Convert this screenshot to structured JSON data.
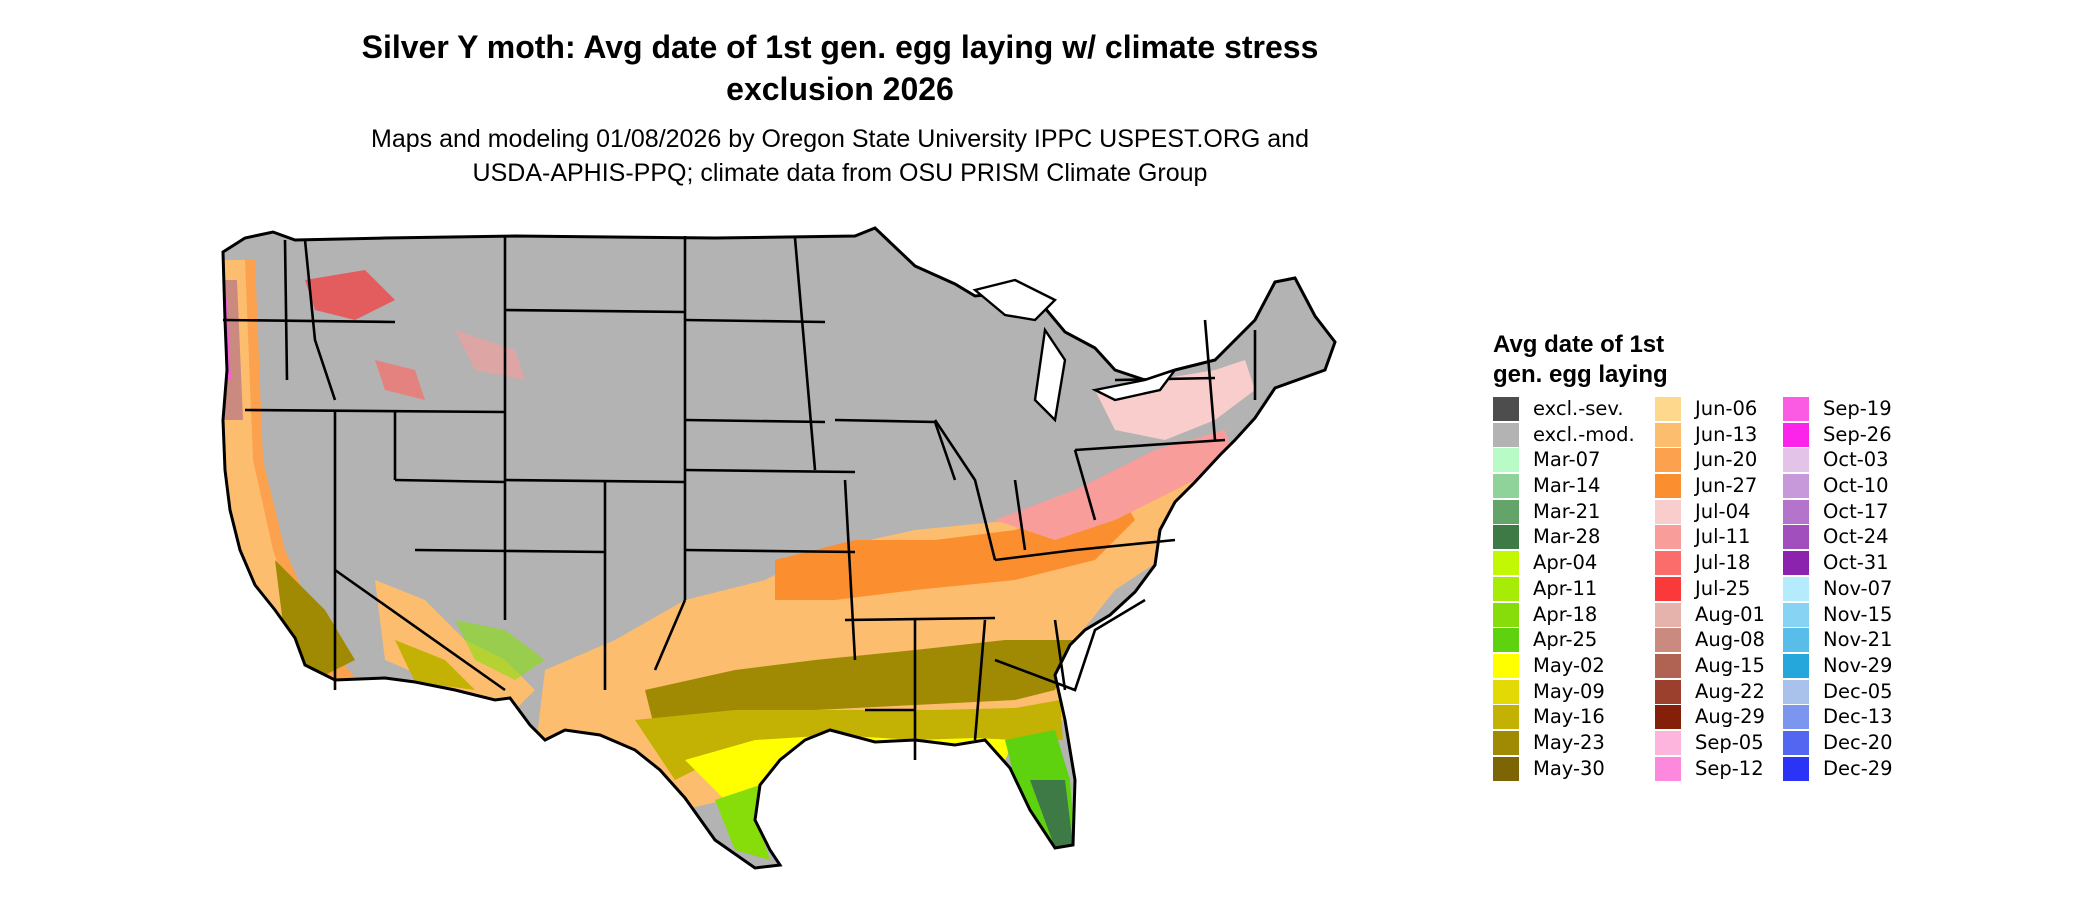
{
  "title_line1": "Silver Y moth: Avg date of 1st gen. egg laying w/ climate stress",
  "title_line2": "exclusion 2026",
  "subtitle_line1": "Maps and modeling 01/08/2026 by Oregon State University IPPC USPEST.ORG and",
  "subtitle_line2": "USDA-APHIS-PPQ; climate data from OSU PRISM Climate Group",
  "legend": {
    "title_line1": "Avg date of 1st",
    "title_line2": "gen. egg laying",
    "columns": [
      [
        {
          "label": "excl.-sev.",
          "color": "#4d4d4d"
        },
        {
          "label": "excl.-mod.",
          "color": "#b3b3b3"
        },
        {
          "label": "Mar-07",
          "color": "#b9fbc7"
        },
        {
          "label": "Mar-14",
          "color": "#90d39a"
        },
        {
          "label": "Mar-21",
          "color": "#64a46b"
        },
        {
          "label": "Mar-28",
          "color": "#3e7a46"
        },
        {
          "label": "Apr-04",
          "color": "#c3f804"
        },
        {
          "label": "Apr-11",
          "color": "#a7ec06"
        },
        {
          "label": "Apr-18",
          "color": "#86dd0a"
        },
        {
          "label": "Apr-25",
          "color": "#5ed20e"
        },
        {
          "label": "May-02",
          "color": "#ffff00"
        },
        {
          "label": "May-09",
          "color": "#e3d904"
        },
        {
          "label": "May-16",
          "color": "#c3b103"
        },
        {
          "label": "May-23",
          "color": "#a08a04"
        },
        {
          "label": "May-30",
          "color": "#7d6405"
        }
      ],
      [
        {
          "label": "Jun-06",
          "color": "#fed88d"
        },
        {
          "label": "Jun-13",
          "color": "#fdbd6f"
        },
        {
          "label": "Jun-20",
          "color": "#fca24e"
        },
        {
          "label": "Jun-27",
          "color": "#fb8e2e"
        },
        {
          "label": "Jul-04",
          "color": "#f9cdcb"
        },
        {
          "label": "Jul-11",
          "color": "#f99d9b"
        },
        {
          "label": "Jul-18",
          "color": "#fa6d6b"
        },
        {
          "label": "Jul-25",
          "color": "#f9393a"
        },
        {
          "label": "Aug-01",
          "color": "#e5b3ab"
        },
        {
          "label": "Aug-08",
          "color": "#cb8a7f"
        },
        {
          "label": "Aug-15",
          "color": "#b06353"
        },
        {
          "label": "Aug-22",
          "color": "#9a402c"
        },
        {
          "label": "Aug-29",
          "color": "#842009"
        },
        {
          "label": "Sep-05",
          "color": "#fdb5dd"
        },
        {
          "label": "Sep-12",
          "color": "#fd89df"
        }
      ],
      [
        {
          "label": "Sep-19",
          "color": "#fb5ae2"
        },
        {
          "label": "Sep-26",
          "color": "#fc24eb"
        },
        {
          "label": "Oct-03",
          "color": "#e3c4e8"
        },
        {
          "label": "Oct-10",
          "color": "#c899da"
        },
        {
          "label": "Oct-17",
          "color": "#b474cc"
        },
        {
          "label": "Oct-24",
          "color": "#a04fbd"
        },
        {
          "label": "Oct-31",
          "color": "#8c23ae"
        },
        {
          "label": "Nov-07",
          "color": "#b4ebfd"
        },
        {
          "label": "Nov-15",
          "color": "#86d3f3"
        },
        {
          "label": "Nov-21",
          "color": "#58bde9"
        },
        {
          "label": "Nov-29",
          "color": "#26a7db"
        },
        {
          "label": "Dec-05",
          "color": "#a8c2eb"
        },
        {
          "label": "Dec-13",
          "color": "#7c96ef"
        },
        {
          "label": "Dec-20",
          "color": "#5366f2"
        },
        {
          "label": "Dec-29",
          "color": "#2b33f6"
        }
      ]
    ]
  }
}
